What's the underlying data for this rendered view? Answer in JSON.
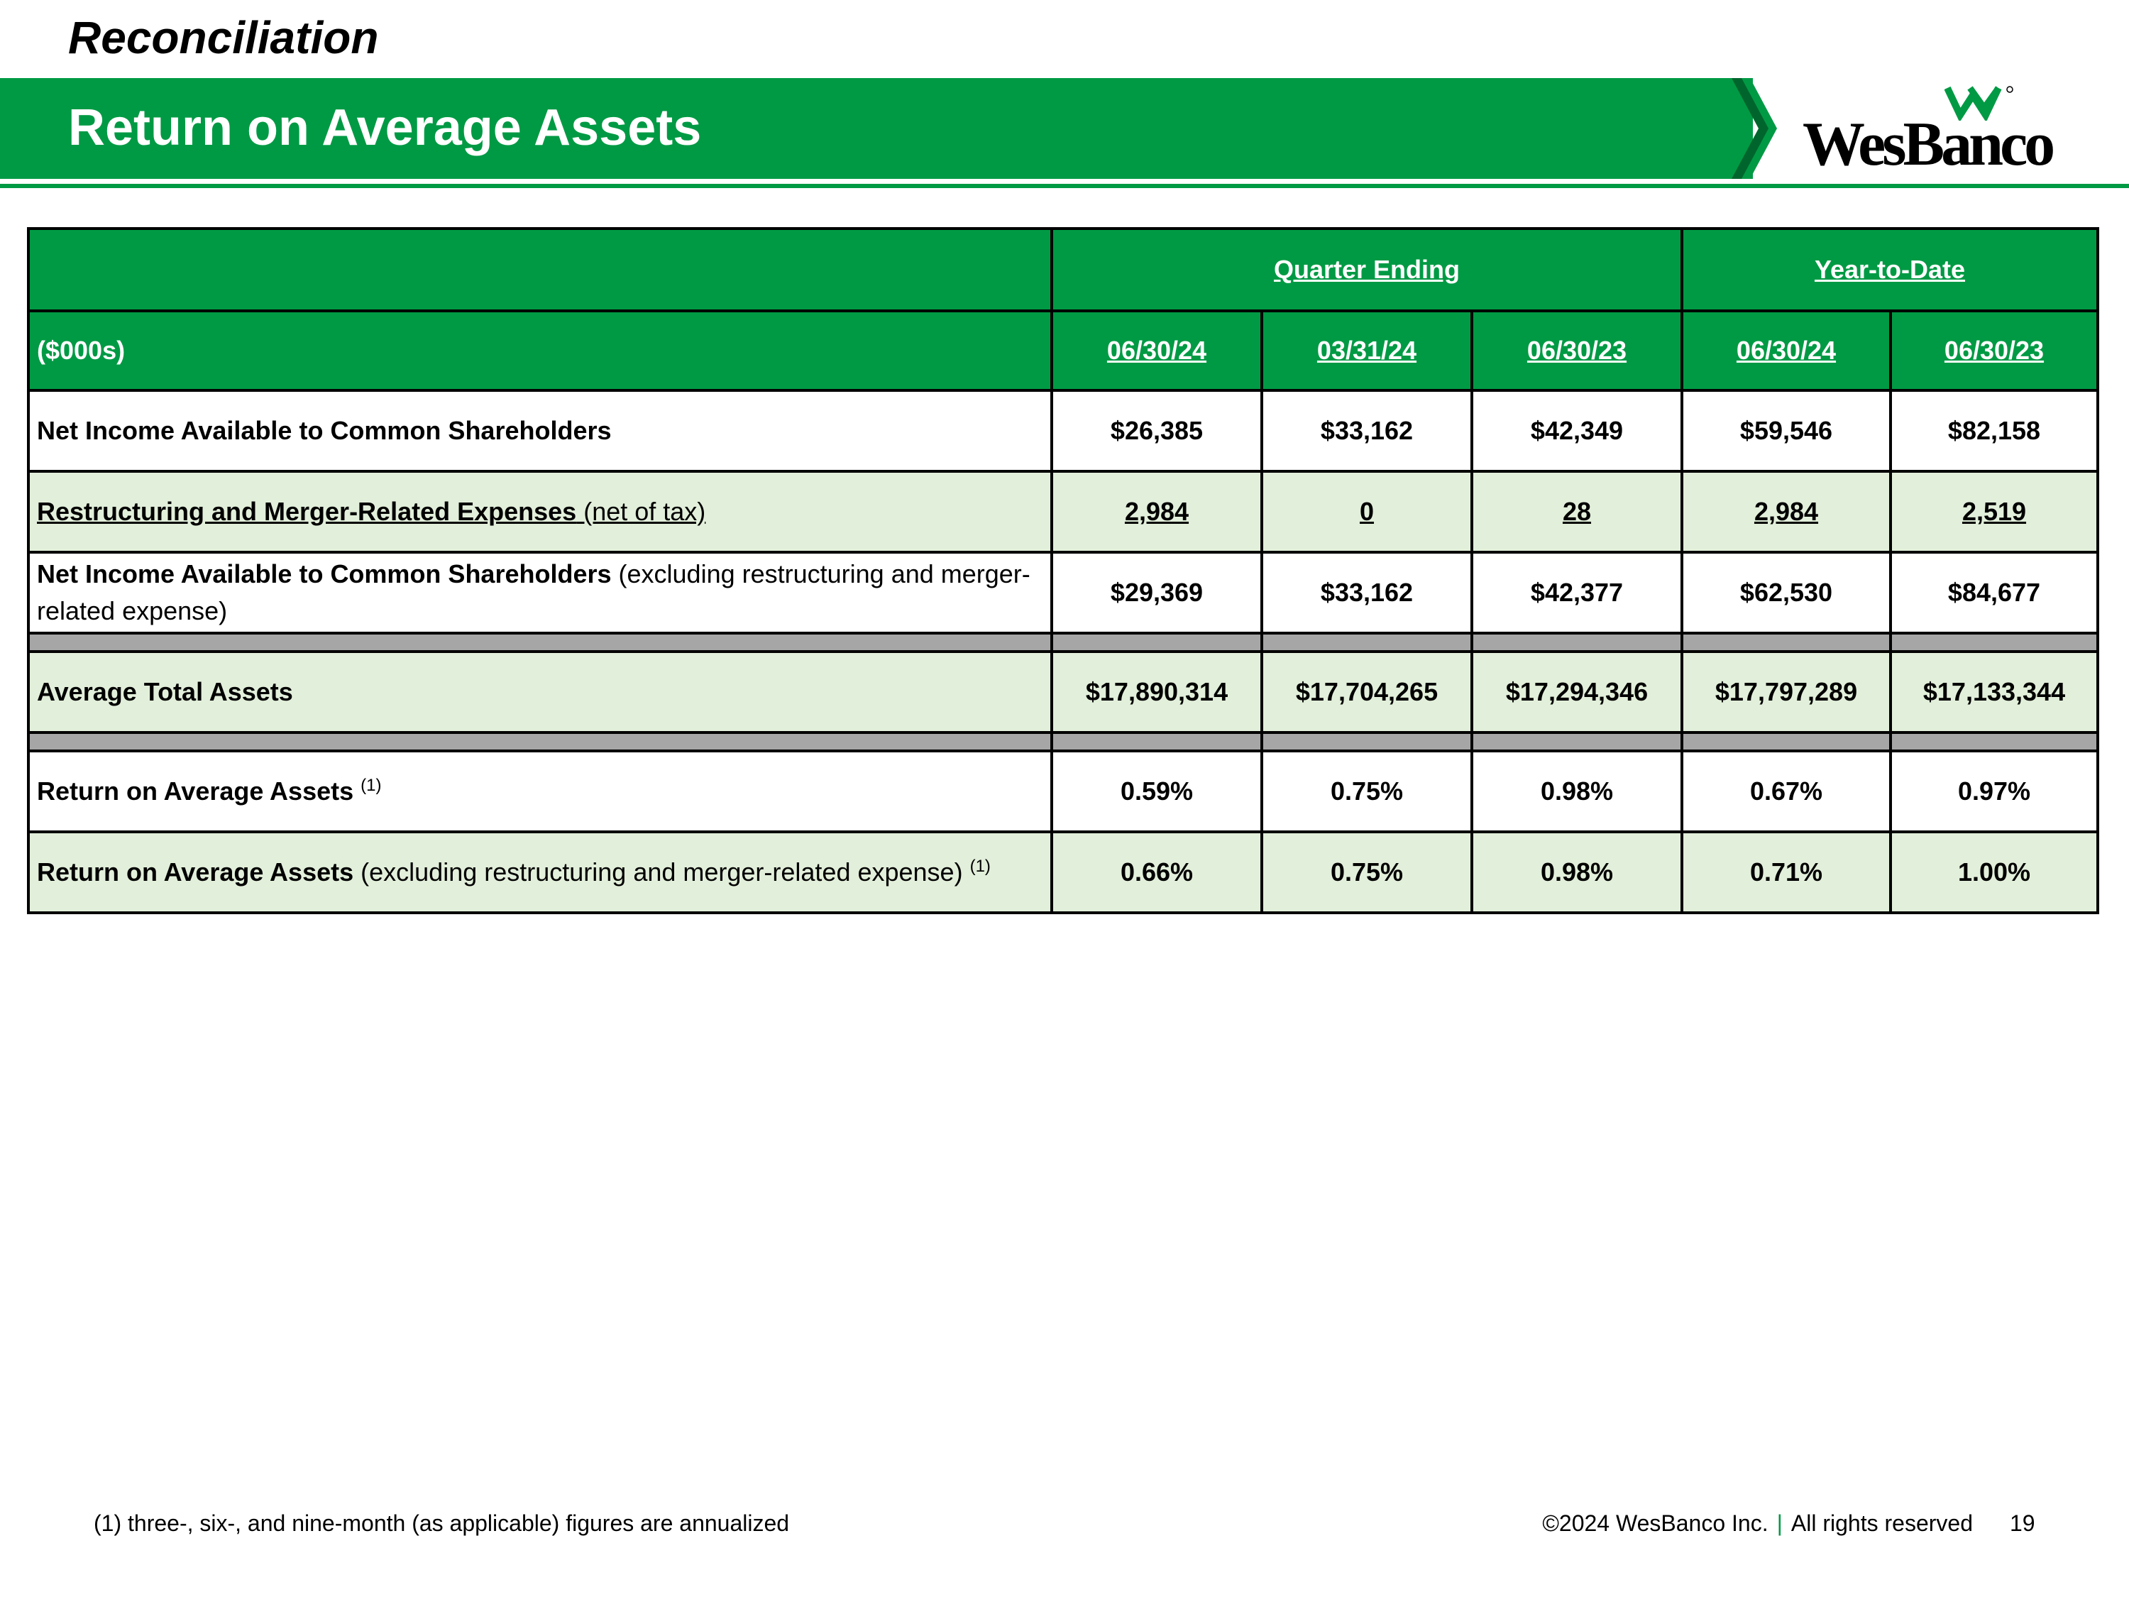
{
  "header": {
    "section": "Reconciliation",
    "title": "Return on Average Assets",
    "brand": "WesBanco",
    "brand_color": "#009a44",
    "logo_icon": "wesbanco-w-icon"
  },
  "table": {
    "units_label": "($000s)",
    "groups": {
      "quarter": "Quarter Ending",
      "ytd": "Year-to-Date"
    },
    "columns": [
      "06/30/24",
      "03/31/24",
      "06/30/23",
      "06/30/24",
      "06/30/23"
    ],
    "rows": [
      {
        "label_bold": "Net Income Available to Common Shareholders",
        "label_rest": "",
        "sup": "",
        "values": [
          "$26,385",
          "$33,162",
          "$42,349",
          "$59,546",
          "$82,158"
        ]
      },
      {
        "label_bold": "Restructuring and Merger-Related Expenses",
        "label_rest": " (net of tax)",
        "sup": "",
        "values": [
          "2,984",
          "0",
          "28",
          "2,984",
          "2,519"
        ]
      },
      {
        "label_bold": "Net Income Available to Common Shareholders",
        "label_rest": " (excluding restructuring and merger-related expense)",
        "sup": "",
        "values": [
          "$29,369",
          "$33,162",
          "$42,377",
          "$62,530",
          "$84,677"
        ]
      },
      {
        "label_bold": "Average Total Assets",
        "label_rest": "",
        "sup": "",
        "values": [
          "$17,890,314",
          "$17,704,265",
          "$17,294,346",
          "$17,797,289",
          "$17,133,344"
        ]
      },
      {
        "label_bold": "Return on Average Assets",
        "label_rest": "",
        "sup": "(1)",
        "values": [
          "0.59%",
          "0.75%",
          "0.98%",
          "0.67%",
          "0.97%"
        ]
      },
      {
        "label_bold": "Return on Average Assets",
        "label_rest": " (excluding restructuring and merger-related expense)",
        "sup": "(1)",
        "values": [
          "0.66%",
          "0.75%",
          "0.98%",
          "0.71%",
          "1.00%"
        ]
      }
    ]
  },
  "footer": {
    "footnote": "(1) three-, six-, and nine-month (as applicable) figures are annualized",
    "copyright": "©2024 WesBanco Inc.",
    "separator": "|",
    "rights": "All rights reserved",
    "page": "19"
  }
}
